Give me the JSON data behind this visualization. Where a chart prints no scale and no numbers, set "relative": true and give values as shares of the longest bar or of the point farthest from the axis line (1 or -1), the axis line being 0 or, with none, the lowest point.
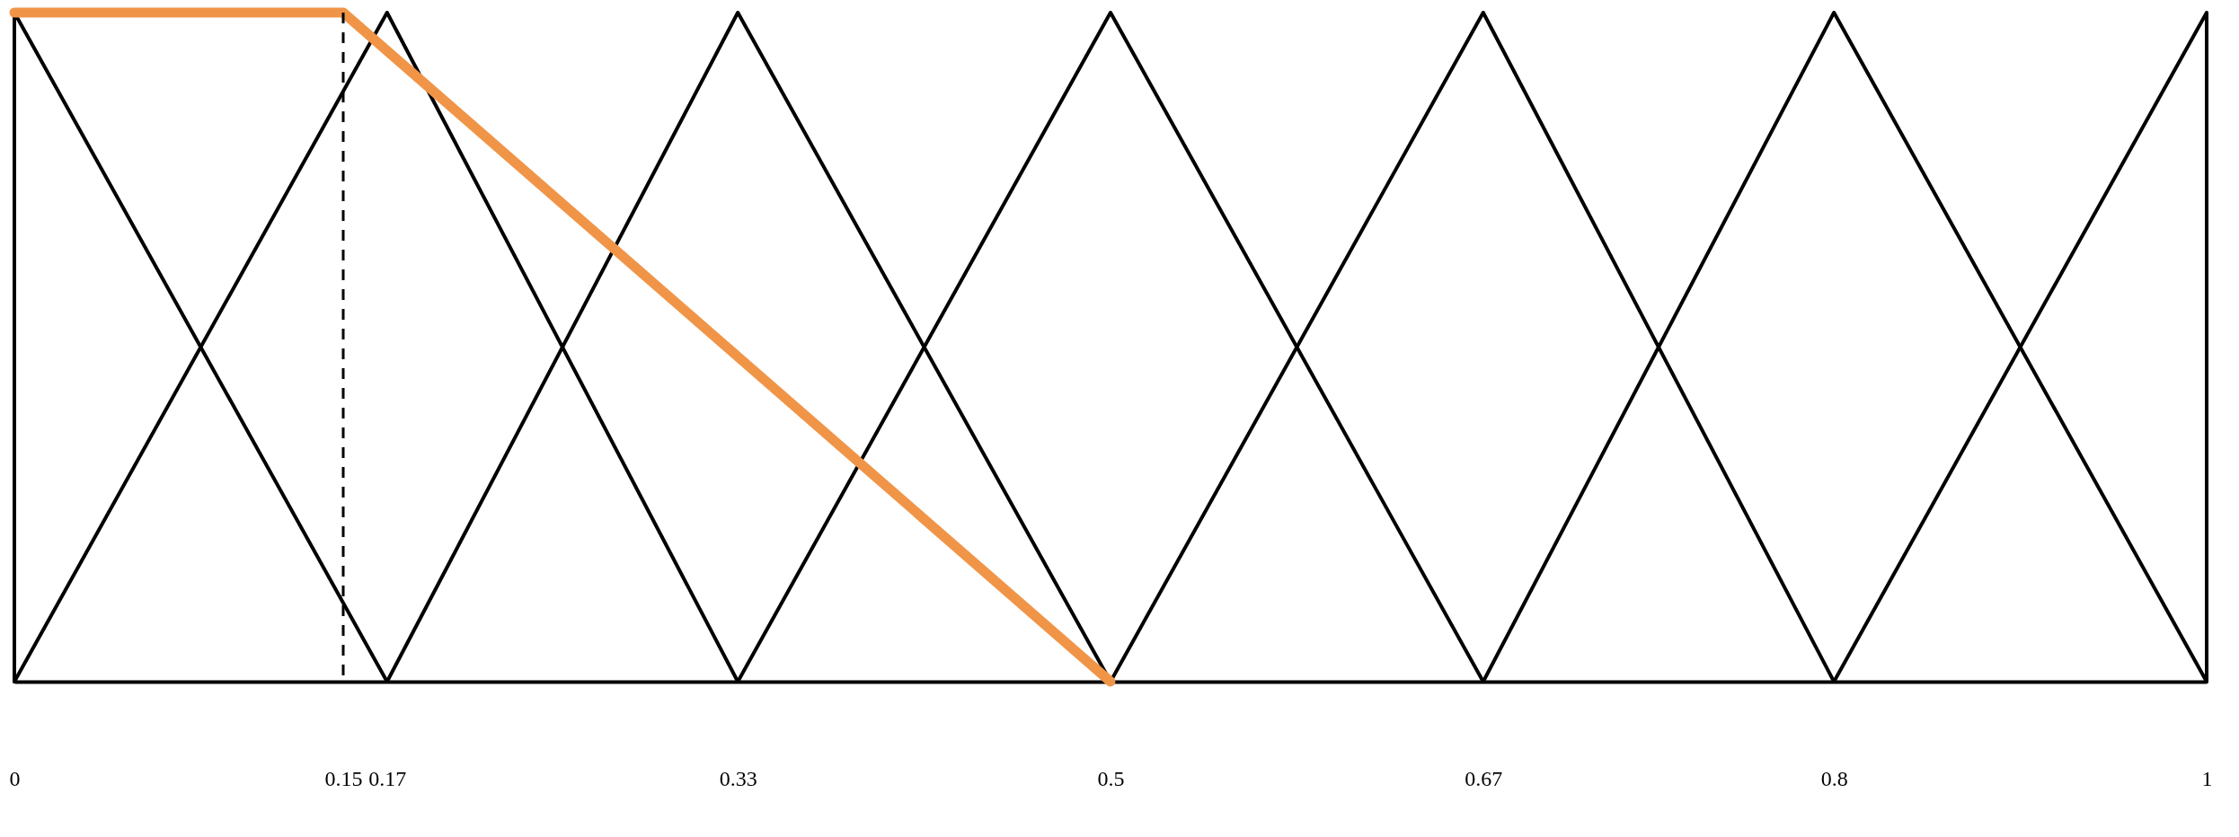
{
  "chart_data": {
    "type": "line",
    "relative": true,
    "xlim": [
      0,
      1
    ],
    "xticks": [
      0,
      0.15,
      0.17,
      0.33,
      0.5,
      0.67,
      {
        "value": 0.83,
        "label": "0.8"
      },
      1
    ],
    "series": [
      {
        "color": "#000000",
        "x": [
          0,
          0,
          0.17
        ],
        "values": [
          0,
          1,
          0
        ]
      },
      {
        "color": "#000000",
        "x": [
          0,
          0.17,
          0.33
        ],
        "values": [
          0,
          1,
          0
        ]
      },
      {
        "color": "#000000",
        "x": [
          0.17,
          0.33,
          0.5
        ],
        "values": [
          0,
          1,
          0
        ]
      },
      {
        "color": "#000000",
        "x": [
          0.33,
          0.5,
          0.67
        ],
        "values": [
          0,
          1,
          0
        ]
      },
      {
        "color": "#000000",
        "x": [
          0.5,
          0.67,
          0.83
        ],
        "values": [
          0,
          1,
          0
        ]
      },
      {
        "color": "#000000",
        "x": [
          0.67,
          0.83,
          1
        ],
        "values": [
          0,
          1,
          0
        ]
      },
      {
        "color": "#000000",
        "x": [
          0.83,
          1,
          1
        ],
        "values": [
          0,
          1,
          0
        ]
      },
      {
        "color": "#f09548",
        "x": [
          0,
          0.15,
          0.5
        ],
        "values": [
          1,
          1,
          0
        ]
      }
    ],
    "ref_lines": [
      {
        "axis": "x",
        "value": 0.15,
        "color": "#000000",
        "line_style": "dashed"
      }
    ],
    "line_style": "solid"
  }
}
